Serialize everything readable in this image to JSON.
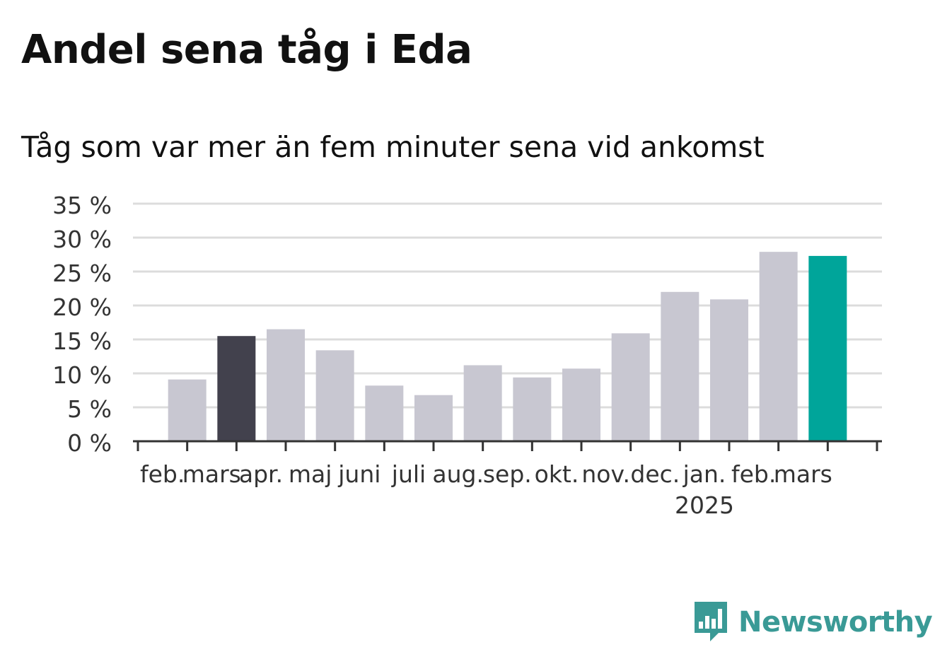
{
  "title": "Andel sena tåg i Eda",
  "subtitle": "Tåg som var mer än fem minuter sena vid ankomst",
  "brand": "Newsworthy",
  "colors": {
    "default": "#c8c7d1",
    "highlight_dark": "#42414d",
    "highlight_accent": "#00a59a",
    "grid": "#dcdcdc",
    "axis": "#333333",
    "brand": "#3a9a96"
  },
  "chart_data": {
    "type": "bar",
    "categories": [
      "feb.",
      "mars",
      "apr.",
      "maj",
      "juni",
      "juli",
      "aug.",
      "sep.",
      "okt.",
      "nov.",
      "dec.",
      "jan.",
      "feb.",
      "mars"
    ],
    "year_labels": [
      {
        "index": 11,
        "label": "2025"
      }
    ],
    "values": [
      9.1,
      15.5,
      16.5,
      13.4,
      8.2,
      6.8,
      11.2,
      9.4,
      10.7,
      15.9,
      22.0,
      20.9,
      27.9,
      27.3
    ],
    "bar_colors": [
      "default",
      "highlight_dark",
      "default",
      "default",
      "default",
      "default",
      "default",
      "default",
      "default",
      "default",
      "default",
      "default",
      "default",
      "highlight_accent"
    ],
    "yticks": [
      0,
      5,
      10,
      15,
      20,
      25,
      30,
      35
    ],
    "ytick_labels": [
      "0 %",
      "5 %",
      "10 %",
      "15 %",
      "20 %",
      "25 %",
      "30 %",
      "35 %"
    ],
    "ylim": [
      0,
      35
    ],
    "grid": true
  }
}
